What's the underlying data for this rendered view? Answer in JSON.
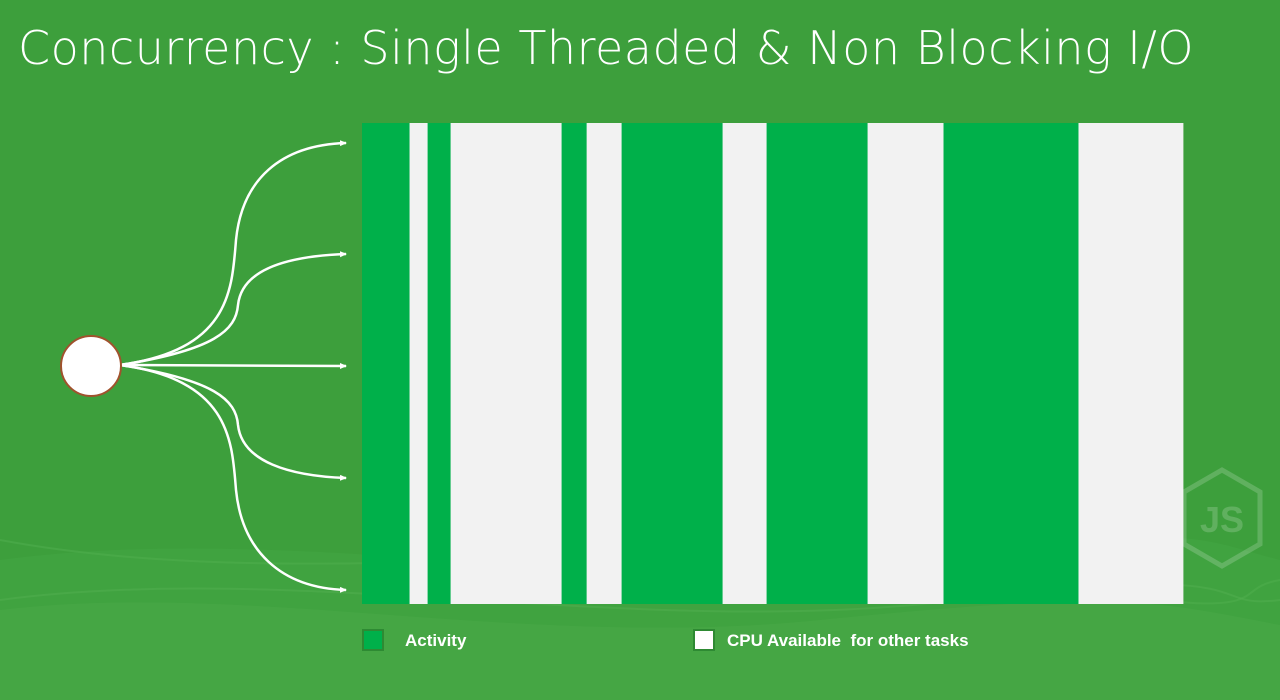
{
  "slide": {
    "title": "Concurrency : Single Threaded & Non Blocking I/O"
  },
  "colors": {
    "background": "#3d9f3c",
    "activity": "#00b04a",
    "cpu_available": "#f2f2f2",
    "arrow": "#ffffff",
    "node_stroke": "#a0522d"
  },
  "timeline": {
    "segments": [
      {
        "kind": "activity",
        "fraction": 0.0579
      },
      {
        "kind": "free",
        "fraction": 0.022
      },
      {
        "kind": "activity",
        "fraction": 0.028
      },
      {
        "kind": "free",
        "fraction": 0.1352
      },
      {
        "kind": "activity",
        "fraction": 0.0305
      },
      {
        "kind": "free",
        "fraction": 0.0426
      },
      {
        "kind": "activity",
        "fraction": 0.123
      },
      {
        "kind": "free",
        "fraction": 0.0536
      },
      {
        "kind": "activity",
        "fraction": 0.123
      },
      {
        "kind": "free",
        "fraction": 0.0925
      },
      {
        "kind": "activity",
        "fraction": 0.1644
      },
      {
        "kind": "free",
        "fraction": 0.1273
      }
    ]
  },
  "fanout": {
    "arrow_count": 5,
    "source_icon": "circle-node"
  },
  "legend": {
    "activity_label": "Activity",
    "cpu_label": "CPU Available  for other tasks"
  },
  "watermark": {
    "icon": "nodejs-logo",
    "text": "JS"
  }
}
